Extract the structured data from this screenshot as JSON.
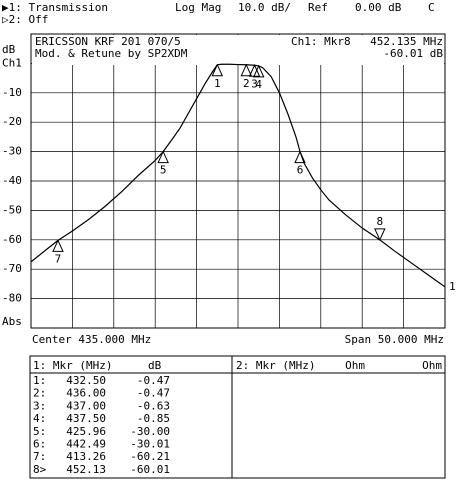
{
  "header": {
    "line1": [
      "▶1: Transmission",
      "Log Mag",
      "10.0 dB/",
      "Ref",
      "0.00 dB",
      "C"
    ],
    "line2": "▷2: Off"
  },
  "chart_data": {
    "type": "line",
    "info": {
      "title": "ERICSSON KRF 201 070/5",
      "subtitle": "Mod. & Retune by SP2XDM",
      "marker_name": "Ch1: Mkr8",
      "marker_freq": "452.135 MHz",
      "marker_level": "-60.01 dB"
    },
    "y_label": "dB",
    "x_left_label": "Center 435.000 MHz",
    "x_right_label": "Span 50.000 MHz",
    "xlim": [
      410,
      460
    ],
    "xticks": [
      410,
      415,
      420,
      425,
      430,
      435,
      440,
      445,
      450,
      455,
      460
    ],
    "ylim": [
      -90,
      10
    ],
    "yticks": [
      {
        "value": 0,
        "label": "Ch1"
      },
      -10,
      -20,
      -30,
      -40,
      -50,
      -60,
      -70,
      -80,
      {
        "value": -90,
        "label": "Abs"
      }
    ],
    "grid": true,
    "x": [
      410,
      412,
      413.26,
      415,
      417,
      419,
      421,
      423,
      425,
      425.96,
      427,
      428,
      429,
      430,
      431,
      432,
      432.5,
      433,
      434,
      435,
      436,
      437,
      437.5,
      438,
      439,
      440,
      441,
      442,
      442.49,
      443,
      444,
      445,
      446,
      448,
      450,
      452.13,
      454,
      456,
      458,
      460
    ],
    "series": [
      {
        "name": "1",
        "color": "#000000",
        "values": [
          -67.5,
          -63,
          -60.21,
          -57,
          -53,
          -48.5,
          -43.5,
          -38,
          -33,
          -30,
          -26,
          -22,
          -17,
          -12,
          -7,
          -2.5,
          -0.47,
          -0.3,
          -0.3,
          -0.4,
          -0.47,
          -0.63,
          -0.85,
          -1.5,
          -4.5,
          -10,
          -17,
          -25,
          -30.01,
          -34,
          -39,
          -43,
          -46.5,
          -51.5,
          -56,
          -60.01,
          -64,
          -68,
          -72,
          -76
        ]
      }
    ],
    "markers": [
      {
        "label": "1",
        "x": 432.5,
        "y": -0.47,
        "dir": "up"
      },
      {
        "label": "2",
        "x": 436,
        "y": -0.47,
        "dir": "up"
      },
      {
        "label": "3",
        "x": 437,
        "y": -0.63,
        "dir": "up"
      },
      {
        "label": "4",
        "x": 437.5,
        "y": -0.85,
        "dir": "up"
      },
      {
        "label": "5",
        "x": 425.96,
        "y": -30,
        "dir": "up"
      },
      {
        "label": "6",
        "x": 442.49,
        "y": -30.01,
        "dir": "up"
      },
      {
        "label": "7",
        "x": 413.26,
        "y": -60.21,
        "dir": "up"
      },
      {
        "label": "8",
        "x": 452.13,
        "y": -60.01,
        "dir": "down"
      }
    ]
  },
  "table": {
    "left_header": [
      "1: Mkr (MHz)",
      "dB"
    ],
    "right_header": [
      "2: Mkr (MHz)",
      "Ohm",
      "Ohm"
    ],
    "rows": [
      [
        "1:",
        "432.50",
        "-0.47"
      ],
      [
        "2:",
        "436.00",
        "-0.47"
      ],
      [
        "3:",
        "437.00",
        "-0.63"
      ],
      [
        "4:",
        "437.50",
        "-0.85"
      ],
      [
        "5:",
        "425.96",
        "-30.00"
      ],
      [
        "6:",
        "442.49",
        "-30.01"
      ],
      [
        "7:",
        "413.26",
        "-60.21"
      ],
      [
        "8>",
        "452.13",
        "-60.01"
      ]
    ]
  }
}
